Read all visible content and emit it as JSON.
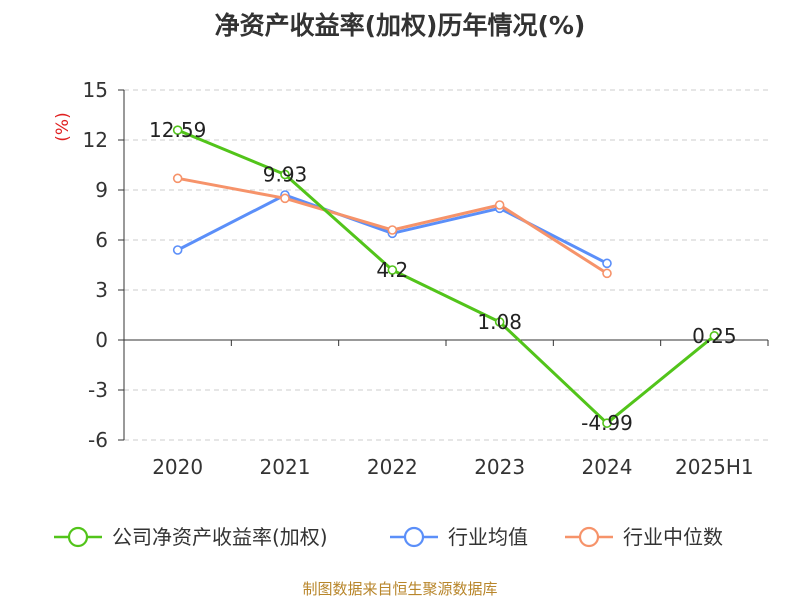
{
  "chart_data": {
    "type": "line",
    "title": "净资产收益率(加权)历年情况(%)",
    "ylabel": "(%)",
    "categories": [
      "2020",
      "2021",
      "2022",
      "2023",
      "2024",
      "2025H1"
    ],
    "ylim": [
      -6,
      15
    ],
    "yticks": [
      -6,
      -3,
      0,
      3,
      6,
      9,
      12,
      15
    ],
    "grid": true,
    "legend_position": "bottom",
    "series": [
      {
        "name": "公司净资产收益率(加权)",
        "color": "#52c41a",
        "values": [
          12.59,
          9.93,
          4.2,
          1.08,
          -4.99,
          0.25
        ],
        "labels": [
          "12.59",
          "9.93",
          "4.2",
          "1.08",
          "-4.99",
          "0.25"
        ]
      },
      {
        "name": "行业均值",
        "color": "#5b8ff9",
        "values": [
          5.4,
          8.7,
          6.4,
          7.9,
          4.6,
          null
        ]
      },
      {
        "name": "行业中位数",
        "color": "#f6936a",
        "values": [
          9.7,
          8.5,
          6.6,
          8.1,
          4.0,
          null
        ]
      }
    ]
  },
  "source": "制图数据来自恒生聚源数据库"
}
